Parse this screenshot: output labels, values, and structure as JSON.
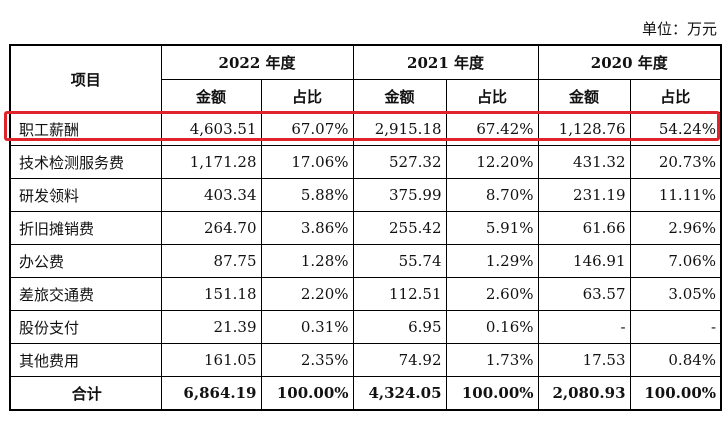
{
  "unit_label": "单位：万元",
  "header": {
    "item": "项目",
    "years": [
      "2022 年度",
      "2021 年度",
      "2020 年度"
    ],
    "amount": "金额",
    "ratio": "占比"
  },
  "rows": [
    {
      "label": "职工薪酬",
      "cells": [
        "4,603.51",
        "67.07%",
        "2,915.18",
        "67.42%",
        "1,128.76",
        "54.24%"
      ]
    },
    {
      "label": "技术检测服务费",
      "cells": [
        "1,171.28",
        "17.06%",
        "527.32",
        "12.20%",
        "431.32",
        "20.73%"
      ]
    },
    {
      "label": "研发领料",
      "cells": [
        "403.34",
        "5.88%",
        "375.99",
        "8.70%",
        "231.19",
        "11.11%"
      ]
    },
    {
      "label": "折旧摊销费",
      "cells": [
        "264.70",
        "3.86%",
        "255.42",
        "5.91%",
        "61.66",
        "2.96%"
      ]
    },
    {
      "label": "办公费",
      "cells": [
        "87.75",
        "1.28%",
        "55.74",
        "1.29%",
        "146.91",
        "7.06%"
      ]
    },
    {
      "label": "差旅交通费",
      "cells": [
        "151.18",
        "2.20%",
        "112.51",
        "2.60%",
        "63.57",
        "3.05%"
      ]
    },
    {
      "label": "股份支付",
      "cells": [
        "21.39",
        "0.31%",
        "6.95",
        "0.16%",
        "-",
        "-"
      ]
    },
    {
      "label": "其他费用",
      "cells": [
        "161.05",
        "2.35%",
        "74.92",
        "1.73%",
        "17.53",
        "0.84%"
      ]
    }
  ],
  "total": {
    "label": "合计",
    "cells": [
      "6,864.19",
      "100.00%",
      "4,324.05",
      "100.00%",
      "2,080.93",
      "100.00%"
    ]
  },
  "highlight_color": "#e0242b"
}
